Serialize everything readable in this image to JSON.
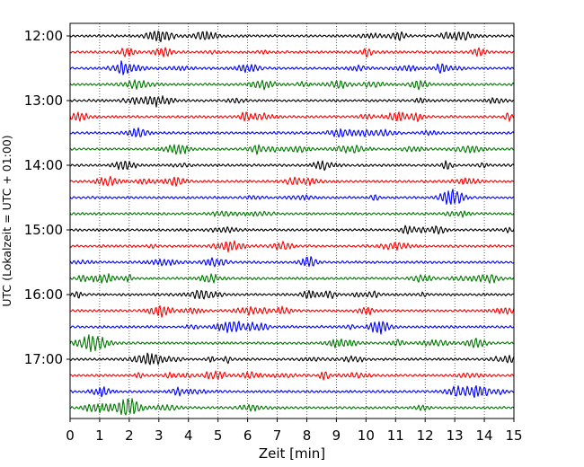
{
  "chart_data": {
    "type": "line",
    "title": "",
    "xlabel": "Zeit  [min]",
    "ylabel": "UTC (Lokalzeit = UTC + 01:00)",
    "xlim": [
      0,
      15
    ],
    "x_ticks": [
      "0",
      "1",
      "2",
      "3",
      "4",
      "5",
      "6",
      "7",
      "8",
      "9",
      "10",
      "11",
      "12",
      "13",
      "14",
      "15"
    ],
    "y_ticks": [
      {
        "label": "12:00",
        "trace": 0
      },
      {
        "label": "13:00",
        "trace": 4
      },
      {
        "label": "14:00",
        "trace": 8
      },
      {
        "label": "15:00",
        "trace": 12
      },
      {
        "label": "16:00",
        "trace": 16
      },
      {
        "label": "17:00",
        "trace": 20
      }
    ],
    "trace_interval_min": 15,
    "trace_count": 24,
    "trace_colors": [
      "#000000",
      "#ff0000",
      "#0000ff",
      "#007700"
    ],
    "grid": "vertical dotted"
  }
}
